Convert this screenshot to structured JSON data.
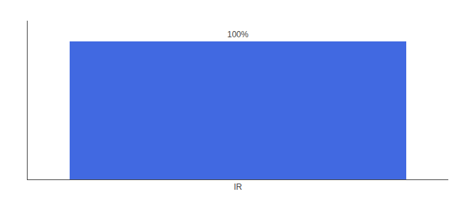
{
  "chart_data": {
    "type": "bar",
    "categories": [
      "IR"
    ],
    "values": [
      100
    ],
    "value_labels": [
      "100%"
    ],
    "data_labels": true,
    "color": "#4169e1",
    "ylim": [
      0,
      115
    ],
    "grid": false,
    "tick_labels": "x"
  }
}
